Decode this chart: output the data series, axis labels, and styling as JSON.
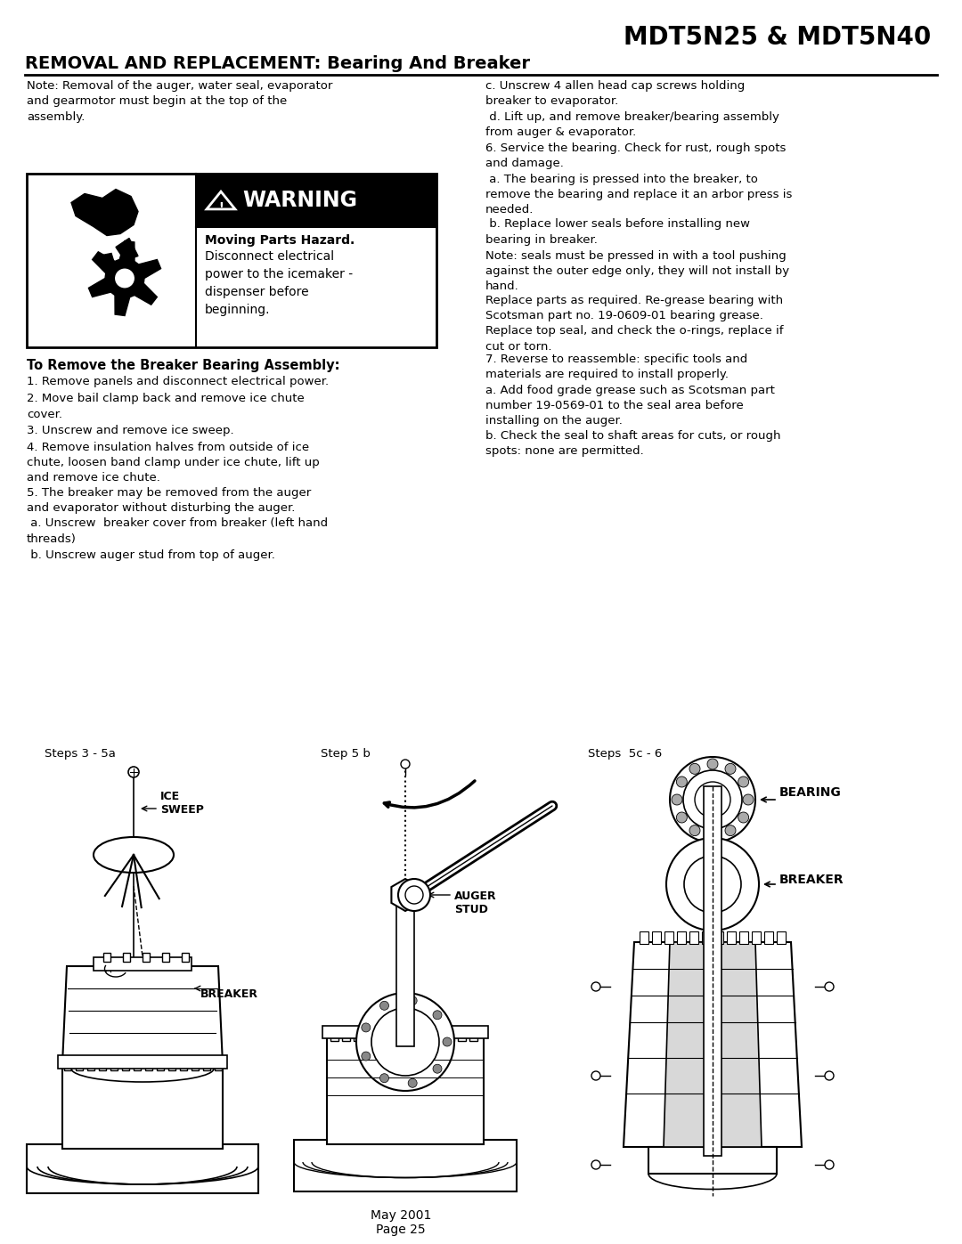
{
  "title": "MDT5N25 & MDT5N40",
  "subtitle": "REMOVAL AND REPLACEMENT: Bearing And Breaker",
  "bg_color": "#ffffff",
  "text_color": "#000000",
  "page_width": 10.8,
  "page_height": 13.97,
  "note_top": "Note: Removal of the auger, water seal, evaporator\nand gearmotor must begin at the top of the\nassembly.",
  "warning_bold": "Moving Parts Hazard.",
  "warning_text": "Disconnect electrical\npower to the icemaker -\ndispenser before\nbeginning.",
  "section_title": "To Remove the Breaker Bearing Assembly:",
  "left_steps": [
    "1. Remove panels and disconnect electrical power.",
    "2. Move bail clamp back and remove ice chute\ncover.",
    "3. Unscrew and remove ice sweep.",
    "4. Remove insulation halves from outside of ice\nchute, loosen band clamp under ice chute, lift up\nand remove ice chute.",
    "5. The breaker may be removed from the auger\nand evaporator without disturbing the auger.",
    " a. Unscrew  breaker cover from breaker (left hand\nthreads)",
    " b. Unscrew auger stud from top of auger."
  ],
  "right_steps": [
    "c. Unscrew 4 allen head cap screws holding\nbreaker to evaporator.",
    " d. Lift up, and remove breaker/bearing assembly\nfrom auger & evaporator.",
    "6. Service the bearing. Check for rust, rough spots\nand damage.",
    " a. The bearing is pressed into the breaker, to\nremove the bearing and replace it an arbor press is\nneeded.",
    " b. Replace lower seals before installing new\nbearing in breaker.",
    "Note: seals must be pressed in with a tool pushing\nagainst the outer edge only, they will not install by\nhand.",
    "Replace parts as required. Re-grease bearing with\nScotsman part no. 19-0609-01 bearing grease.\nReplace top seal, and check the o-rings, replace if\ncut or torn.",
    "7. Reverse to reassemble: specific tools and\nmaterials are required to install properly.",
    "a. Add food grade grease such as Scotsman part\nnumber 19-0569-01 to the seal area before\ninstalling on the auger.",
    "b. Check the seal to shaft areas for cuts, or rough\nspots: none are permitted."
  ],
  "diagram_labels": [
    "Steps 3 - 5a",
    "Step 5 b",
    "Steps  5c - 6"
  ],
  "footer_line1": "May 2001",
  "footer_line2": "Page 25"
}
